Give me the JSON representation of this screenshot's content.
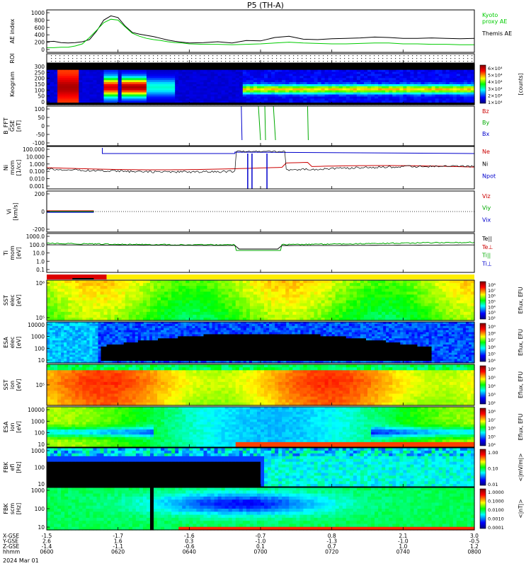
{
  "title": "P5 (TH-A)",
  "colors": {
    "bz": "#cc0000",
    "by": "#00aa00",
    "bx": "#0000cc",
    "ne": "#cc0000",
    "ni": "#000000",
    "npot": "#0000cc",
    "kyoto": "#00cc00",
    "themis": "#000000"
  },
  "time_axis": {
    "rows": [
      {
        "label": "X-GSE",
        "values": [
          "-1.5",
          "-1.7",
          "-1.6",
          "-0.7",
          "0.8",
          "2.1",
          "3.0"
        ]
      },
      {
        "label": "Y-GSE",
        "values": [
          "2.6",
          "1.6",
          "0.3",
          "-1.0",
          "-1.3",
          "-1.0",
          "-0.5"
        ]
      },
      {
        "label": "Z-GSE",
        "values": [
          "-1.4",
          "-1.1",
          "-0.6",
          "0.1",
          "0.7",
          "1.0",
          "1.2"
        ]
      },
      {
        "label": "hhmm",
        "values": [
          "0600",
          "0620",
          "0640",
          "0700",
          "0720",
          "0740",
          "0800"
        ]
      }
    ],
    "date": "2024 Mar 01"
  },
  "chart_data": [
    {
      "type": "line",
      "panel": "ae",
      "ylabel": "AE index",
      "yticks": [
        "1000",
        "800",
        "600",
        "400",
        "200",
        "0"
      ],
      "ylim": [
        0,
        1000
      ],
      "legend": [
        {
          "name": "Kyoto\nproxy AE",
          "color": "#00cc00"
        },
        {
          "name": "Themis AE",
          "color": "#000000"
        }
      ],
      "x": [
        0,
        2,
        4,
        6,
        8,
        10,
        12,
        14,
        16,
        18,
        20,
        22,
        24,
        26,
        28,
        30,
        32,
        34,
        36,
        38,
        40,
        44,
        48,
        52,
        56,
        60,
        64,
        68,
        72,
        76,
        80,
        84,
        88,
        92,
        96,
        100,
        104,
        108,
        112,
        116,
        120
      ],
      "series": [
        {
          "name": "Themis AE",
          "values": [
            250,
            260,
            230,
            220,
            230,
            250,
            300,
            500,
            760,
            860,
            820,
            620,
            470,
            430,
            400,
            370,
            330,
            290,
            260,
            240,
            220,
            230,
            250,
            220,
            280,
            270,
            350,
            380,
            310,
            300,
            320,
            330,
            340,
            360,
            350,
            330,
            330,
            340,
            330,
            320,
            330
          ]
        },
        {
          "name": "Kyoto\nproxy AE",
          "values": [
            110,
            110,
            120,
            120,
            150,
            200,
            350,
            520,
            700,
            780,
            760,
            600,
            450,
            380,
            330,
            300,
            280,
            250,
            230,
            220,
            200,
            190,
            190,
            180,
            190,
            200,
            220,
            240,
            220,
            210,
            200,
            200,
            210,
            220,
            220,
            200,
            200,
            190,
            190,
            180,
            180
          ]
        }
      ]
    },
    {
      "type": "heatmap",
      "panel": "roi",
      "ylabel": "ROI"
    },
    {
      "type": "heatmap",
      "panel": "keogram",
      "ylabel": "Keogram",
      "yticks": [
        "300",
        "250",
        "200",
        "150",
        "100",
        "50",
        "0"
      ],
      "colorbar": {
        "label": "[counts]",
        "ticks": [
          "6×10⁴",
          "5×10⁴",
          "4×10⁴",
          "3×10⁴",
          "2×10⁴",
          "1×10⁴"
        ]
      }
    },
    {
      "type": "line",
      "panel": "bfft",
      "ylabel": "B_FFT\nGSE\n[nT]",
      "yticks": [
        "100",
        "50",
        "0",
        "-50",
        "-100"
      ],
      "ylim": [
        -100,
        100
      ],
      "legend": [
        {
          "name": "Bz",
          "color": "#cc0000"
        },
        {
          "name": "By",
          "color": "#00aa00"
        },
        {
          "name": "Bx",
          "color": "#0000cc"
        }
      ]
    },
    {
      "type": "line",
      "panel": "ni",
      "ylabel": "Ni\nmom\n[1/cc]",
      "yticks": [
        "100.000",
        "10.000",
        "1.000",
        "0.100",
        "0.010",
        "0.001"
      ],
      "legend": [
        {
          "name": "Ne",
          "color": "#cc0000"
        },
        {
          "name": "Ni",
          "color": "#000000"
        },
        {
          "name": "Npot",
          "color": "#0000cc"
        }
      ]
    },
    {
      "type": "line",
      "panel": "vi",
      "ylabel": "Vi\n[km/s]",
      "yticks": [
        "200",
        "0",
        "-200"
      ],
      "legend": [
        {
          "name": "Viz",
          "color": "#cc0000"
        },
        {
          "name": "Viy",
          "color": "#00aa00"
        },
        {
          "name": "Vix",
          "color": "#0000cc"
        }
      ]
    },
    {
      "type": "line",
      "panel": "ti",
      "ylabel": "Ti\nmom\n[eV]",
      "yticks": [
        "1000.0",
        "100.0",
        "10.0",
        "1.0",
        "0.1"
      ],
      "legend": [
        {
          "name": "Te||",
          "color": "#000000"
        },
        {
          "name": "Te⊥",
          "color": "#cc0000"
        },
        {
          "name": "Ti||",
          "color": "#00aa00"
        },
        {
          "name": "Ti⊥",
          "color": "#0000cc"
        }
      ]
    },
    {
      "type": "heatmap",
      "panel": "sst_e",
      "ylabel": "SST\nelec\n[eV]",
      "yticks": [
        "10⁶",
        "10⁵"
      ],
      "colorbar": {
        "label": "Eflux, EFU",
        "ticks": [
          "10⁸",
          "10⁷",
          "10⁶",
          "10⁵",
          "10⁴",
          "10³",
          "10²"
        ]
      }
    },
    {
      "type": "heatmap",
      "panel": "esa_e",
      "ylabel": "ESA\nelec\n[eV]",
      "yticks": [
        "10000",
        "1000",
        "100",
        "10"
      ],
      "colorbar": {
        "label": "Eflux, EFU",
        "ticks": [
          "10⁹",
          "10⁸",
          "10⁷",
          "10⁶",
          "10⁵",
          "10⁴"
        ]
      }
    },
    {
      "type": "heatmap",
      "panel": "sst_i",
      "ylabel": "SST\nion\n[eV]",
      "yticks": [
        "10⁵"
      ],
      "colorbar": {
        "label": "Eflux, EFU",
        "ticks": [
          "10⁶",
          "10⁵",
          "10⁴",
          "10³",
          "10²"
        ]
      }
    },
    {
      "type": "heatmap",
      "panel": "esa_i",
      "ylabel": "ESA\nion\n[eV]",
      "yticks": [
        "10000",
        "1000",
        "100",
        "10"
      ],
      "colorbar": {
        "label": "Eflux, EFU",
        "ticks": [
          "10⁸",
          "10⁷",
          "10⁶",
          "10⁵",
          "10⁴"
        ]
      }
    },
    {
      "type": "heatmap",
      "panel": "fbk_e",
      "ylabel": "FBK\nefi\n[Hz]",
      "yticks": [
        "1000",
        "100",
        "10"
      ],
      "colorbar": {
        "label": "<|mV/m|>",
        "ticks": [
          "1.00",
          "0.10",
          "0.01"
        ]
      }
    },
    {
      "type": "heatmap",
      "panel": "fbk_b",
      "ylabel": "FBK\nscm\n[Hz]",
      "yticks": [
        "1000",
        "100",
        "10"
      ],
      "colorbar": {
        "label": "<|nT|>",
        "ticks": [
          "1.0000",
          "0.1000",
          "0.0100",
          "0.0010",
          "0.0001"
        ]
      }
    }
  ]
}
